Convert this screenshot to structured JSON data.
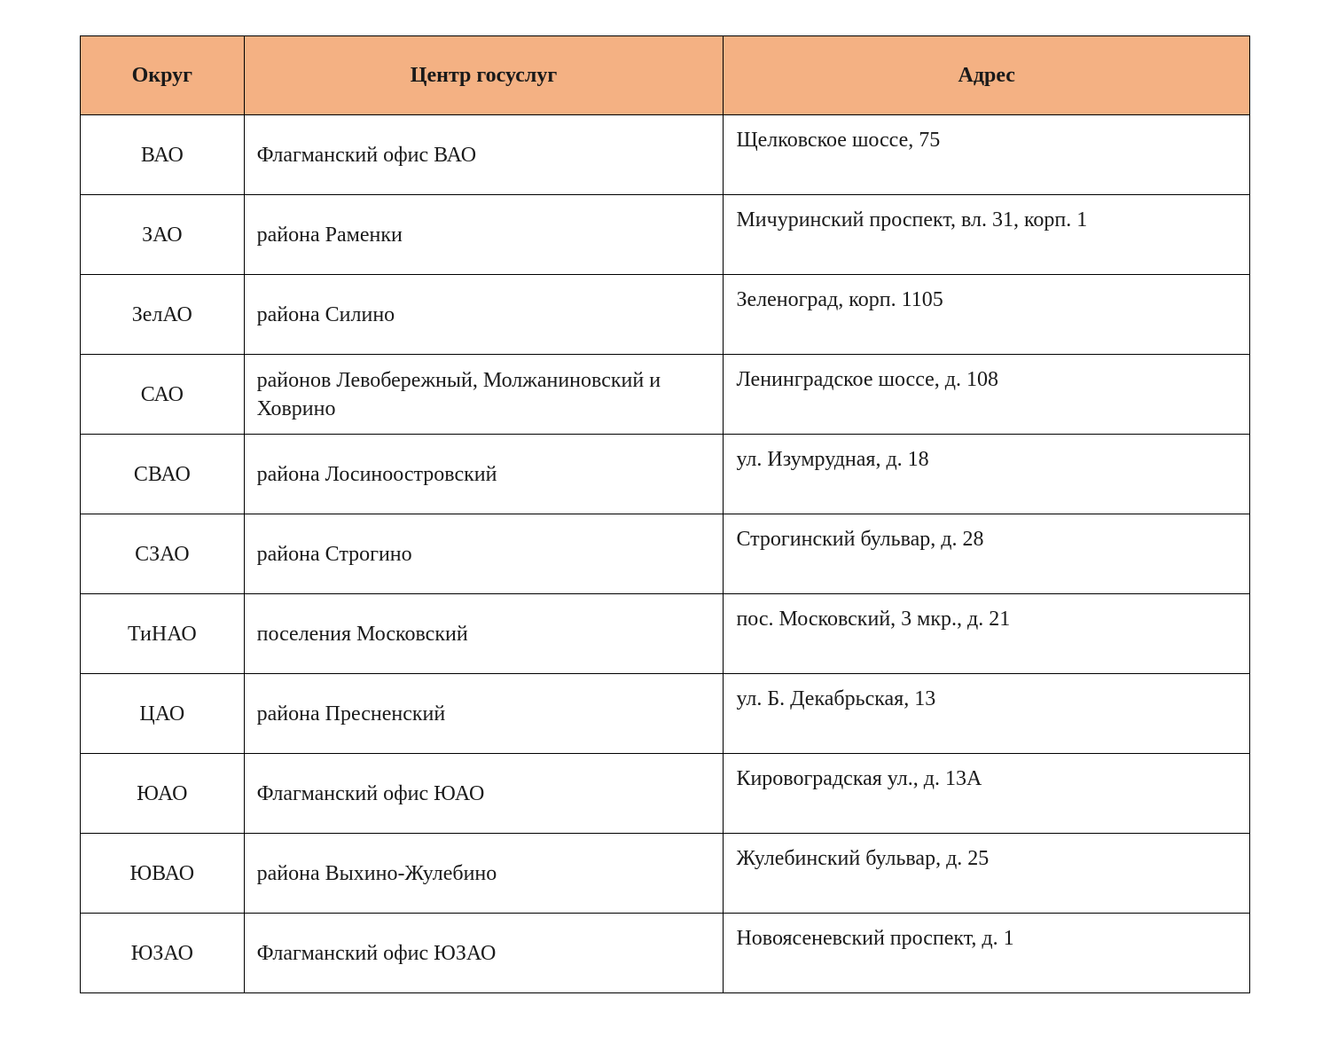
{
  "table": {
    "type": "table",
    "header_bg_color": "#f4b183",
    "border_color": "#000000",
    "text_color": "#1a1a1a",
    "font_family": "Times New Roman",
    "header_fontsize": 24,
    "body_fontsize": 24,
    "header_font_weight": "bold",
    "column_widths_percent": [
      14,
      41,
      45
    ],
    "columns": [
      {
        "label": "Округ",
        "align": "center"
      },
      {
        "label": "Центр госуслуг",
        "align": "center"
      },
      {
        "label": "Адрес",
        "align": "center"
      }
    ],
    "rows": [
      {
        "okrug": "ВАО",
        "center": "Флагманский офис ВАО",
        "address": "Щелковское шоссе, 75"
      },
      {
        "okrug": "ЗАО",
        "center": "района Раменки",
        "address": "Мичуринский проспект, вл. 31, корп. 1"
      },
      {
        "okrug": "ЗелАО",
        "center": "района Силино",
        "address": "Зеленоград, корп. 1105"
      },
      {
        "okrug": "САО",
        "center": "районов Левобережный, Молжаниновский и Ховрино",
        "address": "Ленинградское шоссе, д. 108"
      },
      {
        "okrug": "СВАО",
        "center": "района Лосиноостровский",
        "address": "ул. Изумрудная, д. 18"
      },
      {
        "okrug": "СЗАО",
        "center": "района Строгино",
        "address": "Строгинский бульвар, д. 28"
      },
      {
        "okrug": "ТиНАО",
        "center": "поселения Московский",
        "address": "пос. Московский, 3 мкр., д. 21"
      },
      {
        "okrug": "ЦАО",
        "center": "района Пресненский",
        "address": "ул. Б. Декабрьская, 13"
      },
      {
        "okrug": "ЮАО",
        "center": "Флагманский офис ЮАО",
        "address": "Кировоградская ул., д. 13А"
      },
      {
        "okrug": "ЮВАО",
        "center": "района Выхино-Жулебино",
        "address": "Жулебинский бульвар, д. 25"
      },
      {
        "okrug": "ЮЗАО",
        "center": "Флагманский офис ЮЗАО",
        "address": "Новоясеневский проспект, д. 1"
      }
    ]
  }
}
